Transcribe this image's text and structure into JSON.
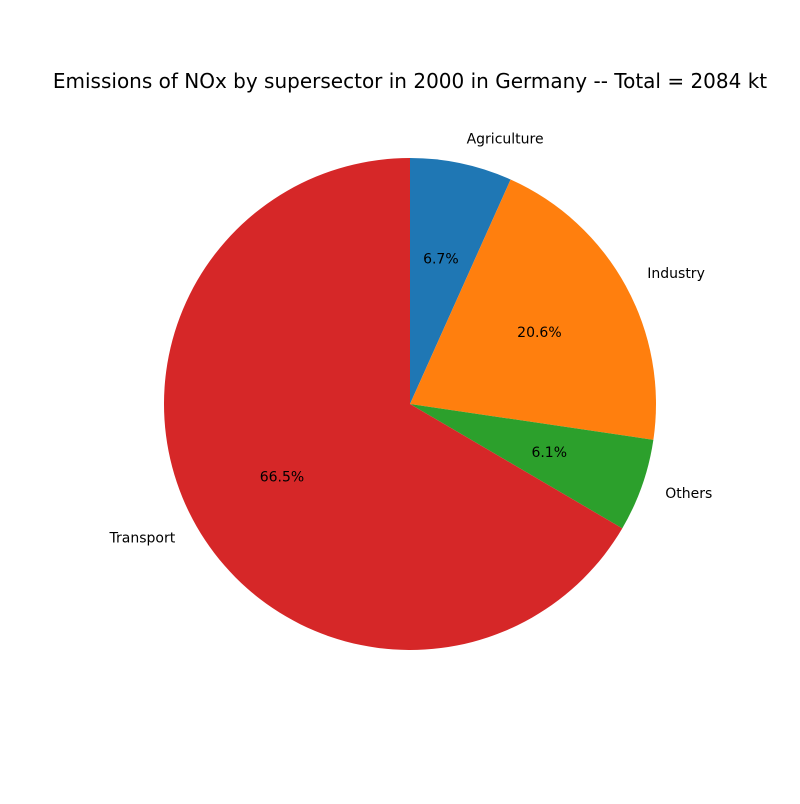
{
  "chart_data": {
    "type": "pie",
    "title": "Emissions of NOx by supersector in 2000 in Germany -- Total = 2084 kt",
    "start_angle_deg": 90,
    "direction": "clockwise",
    "slices": [
      {
        "label": "Agriculture",
        "value": 6.7,
        "pct_label": "6.7%",
        "color": "#1f77b4"
      },
      {
        "label": "Industry",
        "value": 20.6,
        "pct_label": "20.6%",
        "color": "#ff7f0e"
      },
      {
        "label": "Others",
        "value": 6.1,
        "pct_label": "6.1%",
        "color": "#2ca02c"
      },
      {
        "label": "Transport",
        "value": 66.5,
        "pct_label": "66.5%",
        "color": "#d62728"
      }
    ]
  }
}
